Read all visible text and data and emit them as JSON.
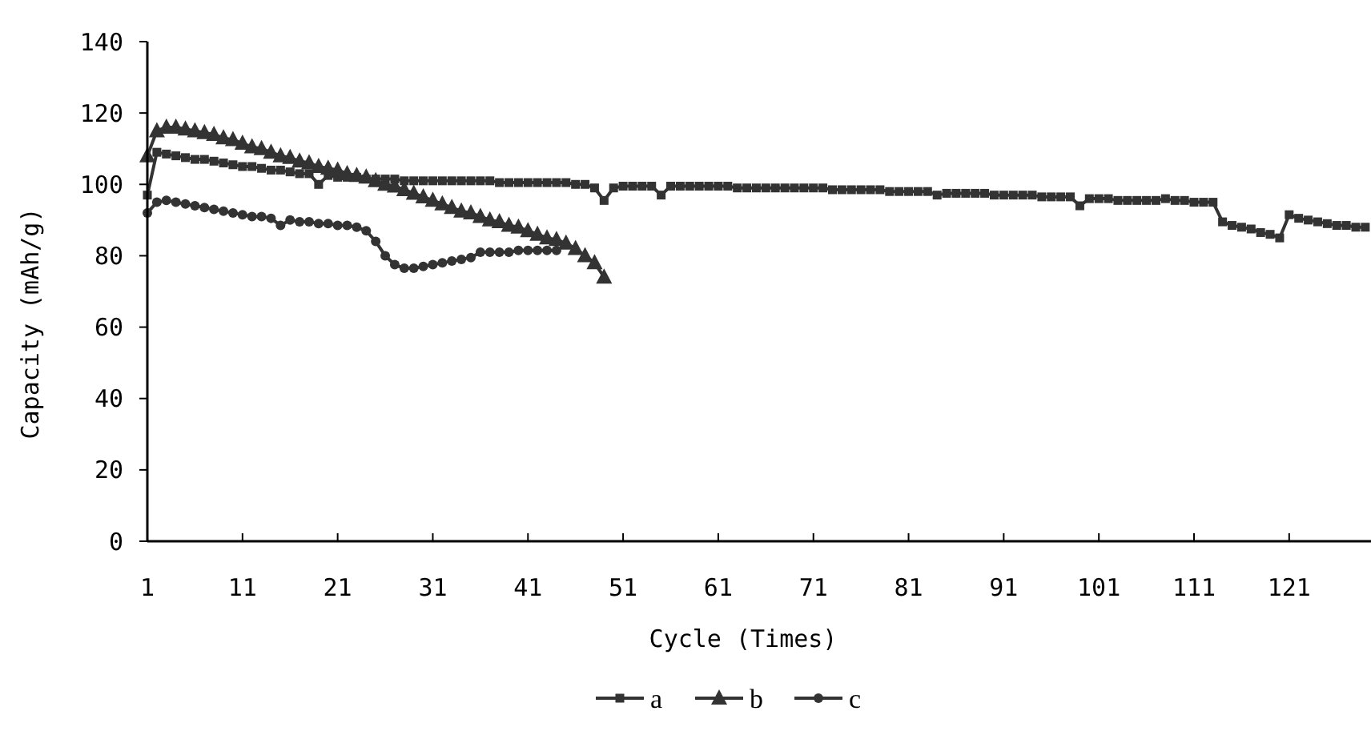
{
  "chart_data": {
    "type": "line",
    "xlabel": "Cycle (Times)",
    "ylabel": "Capacity (mAh/g)",
    "x": [
      1,
      2,
      3,
      4,
      5,
      6,
      7,
      8,
      9,
      10,
      11,
      12,
      13,
      14,
      15,
      16,
      17,
      18,
      19,
      20,
      21,
      22,
      23,
      24,
      25,
      26,
      27,
      28,
      29,
      30,
      31,
      32,
      33,
      34,
      35,
      36,
      37,
      38,
      39,
      40,
      41,
      42,
      43,
      44,
      45,
      46,
      47,
      48,
      49,
      50,
      51,
      52,
      53,
      54,
      55,
      56,
      57,
      58,
      59,
      60,
      61,
      62,
      63,
      64,
      65,
      66,
      67,
      68,
      69,
      70,
      71,
      72,
      73,
      74,
      75,
      76,
      77,
      78,
      79,
      80,
      81,
      82,
      83,
      84,
      85,
      86,
      87,
      88,
      89,
      90,
      91,
      92,
      93,
      94,
      95,
      96,
      97,
      98,
      99,
      100,
      101,
      102,
      103,
      104,
      105,
      106,
      107,
      108,
      109,
      110,
      111,
      112,
      113,
      114,
      115,
      116,
      117,
      118,
      119,
      120,
      121,
      122,
      123,
      124,
      125,
      126,
      127,
      128,
      129
    ],
    "xlim": [
      1,
      129.6
    ],
    "xticks": [
      1,
      11,
      21,
      31,
      41,
      51,
      61,
      71,
      81,
      91,
      101,
      111,
      121
    ],
    "ylim": [
      0,
      140
    ],
    "yticks": [
      0,
      20,
      40,
      60,
      80,
      100,
      120,
      140
    ],
    "grid": false,
    "legend": "bottom",
    "line_style": "solid",
    "series": [
      {
        "name": "a",
        "color": "#333333",
        "marker": "square",
        "values": [
          97,
          109,
          108.5,
          108,
          107.5,
          107,
          107,
          106.5,
          106,
          105.5,
          105,
          105,
          104.5,
          104,
          104,
          103.5,
          103,
          103,
          100,
          102.5,
          102,
          102,
          102,
          101.5,
          101.5,
          101.5,
          101.5,
          101,
          101,
          101,
          101,
          101,
          101,
          101,
          101,
          101,
          101,
          100.5,
          100.5,
          100.5,
          100.5,
          100.5,
          100.5,
          100.5,
          100.5,
          100,
          100,
          99,
          95.5,
          99,
          99.5,
          99.5,
          99.5,
          99.5,
          97,
          99.5,
          99.5,
          99.5,
          99.5,
          99.5,
          99.5,
          99.5,
          99,
          99,
          99,
          99,
          99,
          99,
          99,
          99,
          99,
          99,
          98.5,
          98.5,
          98.5,
          98.5,
          98.5,
          98.5,
          98,
          98,
          98,
          98,
          98,
          97,
          97.5,
          97.5,
          97.5,
          97.5,
          97.5,
          97,
          97,
          97,
          97,
          97,
          96.5,
          96.5,
          96.5,
          96.5,
          94,
          96,
          96,
          96,
          95.5,
          95.5,
          95.5,
          95.5,
          95.5,
          96,
          95.5,
          95.5,
          95,
          95,
          95,
          89.5,
          88.5,
          88,
          87.5,
          86.5,
          86,
          85,
          91.5,
          90.5,
          90,
          89.5,
          89,
          88.5,
          88.5,
          88,
          88
        ]
      },
      {
        "name": "b",
        "color": "#333333",
        "marker": "triangle",
        "x": [
          1,
          2,
          3,
          4,
          5,
          6,
          7,
          8,
          9,
          10,
          11,
          12,
          13,
          14,
          15,
          16,
          17,
          18,
          19,
          20,
          21,
          22,
          23,
          24,
          25,
          26,
          27,
          28,
          29,
          30,
          31,
          32,
          33,
          34,
          35,
          36,
          37,
          38,
          39,
          40,
          41,
          42,
          43,
          44,
          45,
          46,
          47,
          48,
          49
        ],
        "values": [
          108,
          115,
          116,
          116,
          115.5,
          115,
          114.5,
          114,
          113,
          112.5,
          111.5,
          110.5,
          110,
          109,
          108,
          107.5,
          106.5,
          106,
          105,
          104.5,
          104,
          103,
          102.5,
          102,
          101,
          100,
          99.5,
          98.5,
          97.5,
          96.5,
          95.5,
          94.5,
          93.5,
          92.5,
          92,
          91,
          90,
          89.5,
          88.5,
          88,
          87,
          86,
          85,
          84.5,
          83.5,
          82,
          80,
          78,
          74
        ]
      },
      {
        "name": "c",
        "color": "#333333",
        "marker": "circle",
        "x": [
          1,
          2,
          3,
          4,
          5,
          6,
          7,
          8,
          9,
          10,
          11,
          12,
          13,
          14,
          15,
          16,
          17,
          18,
          19,
          20,
          21,
          22,
          23,
          24,
          25,
          26,
          27,
          28,
          29,
          30,
          31,
          32,
          33,
          34,
          35,
          36,
          37,
          38,
          39,
          40,
          41,
          42,
          43,
          44
        ],
        "values": [
          92,
          95,
          95.5,
          95,
          94.5,
          94,
          93.5,
          93,
          92.5,
          92,
          91.5,
          91,
          91,
          90.5,
          88.5,
          90,
          89.5,
          89.5,
          89,
          89,
          88.5,
          88.5,
          88,
          87,
          84,
          80,
          77.5,
          76.5,
          76.5,
          77,
          77.5,
          78,
          78.5,
          79,
          79.5,
          81,
          81,
          81,
          81,
          81.5,
          81.5,
          81.5,
          81.5,
          81.5
        ]
      }
    ]
  }
}
